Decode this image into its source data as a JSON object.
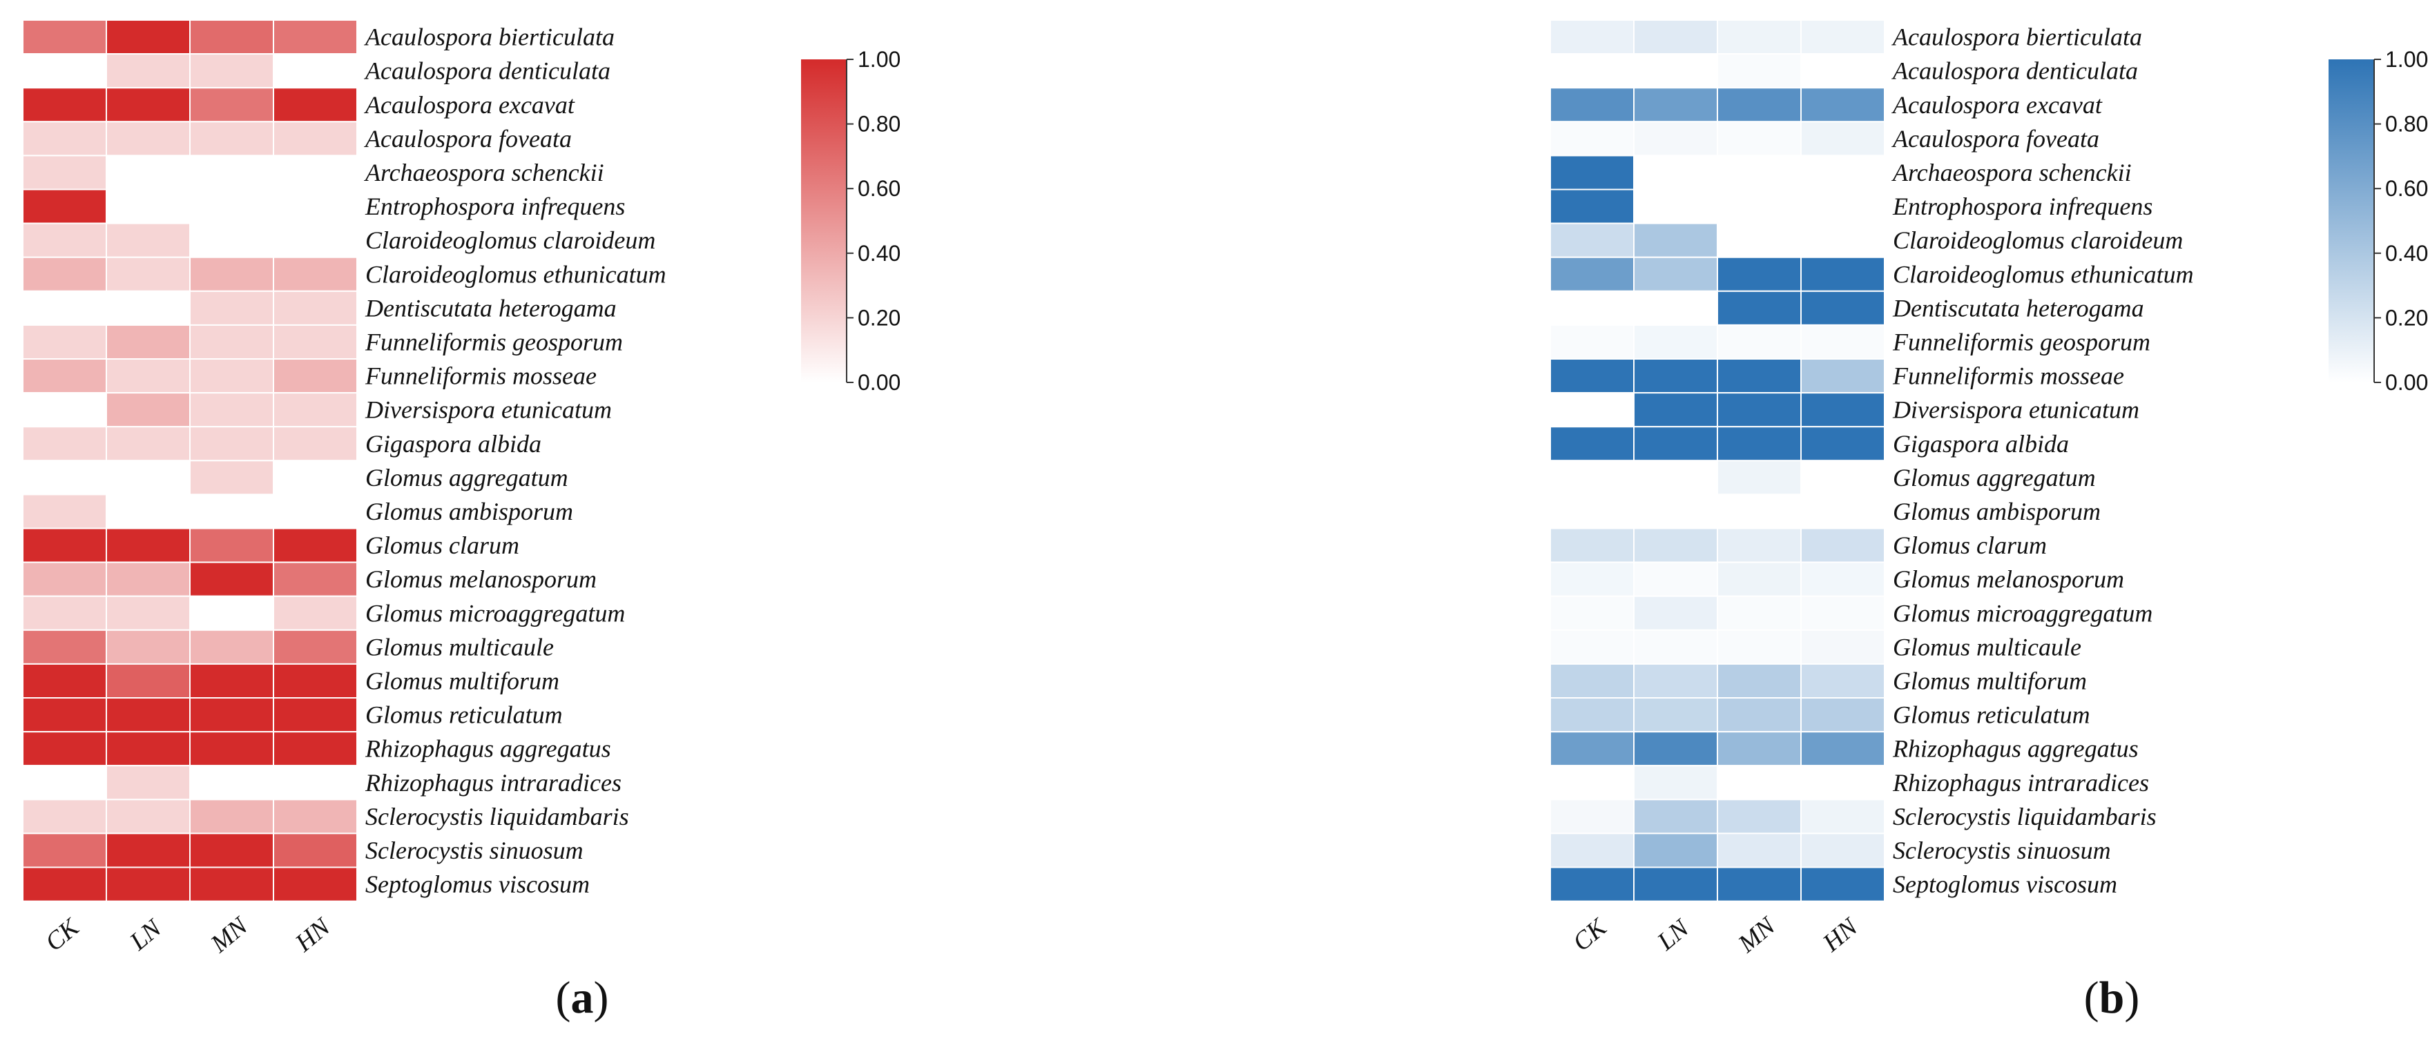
{
  "chart_data": [
    {
      "type": "heatmap",
      "panel_label": "a",
      "columns": [
        "CK",
        "LN",
        "MN",
        "HN"
      ],
      "rows": [
        "Acaulospora bierticulata",
        "Acaulospora denticulata",
        "Acaulospora excavat",
        "Acaulospora foveata",
        "Archaeospora schenckii",
        "Entrophospora infrequens",
        "Claroideoglomus claroideum",
        "Claroideoglomus ethunicatum",
        "Dentiscutata heterogama",
        "Funneliformis geosporum",
        "Funneliformis mosseae",
        "Diversispora etunicatum",
        "Gigaspora albida",
        "Glomus aggregatum",
        "Glomus ambisporum",
        "Glomus clarum",
        "Glomus melanosporum",
        "Glomus microaggregatum",
        "Glomus multicaule",
        "Glomus multiforum",
        "Glomus reticulatum",
        "Rhizophagus aggregatus",
        "Rhizophagus intraradices",
        "Sclerocystis liquidambaris",
        "Sclerocystis sinuosum",
        "Septoglomus viscosum"
      ],
      "values": [
        [
          0.65,
          1.0,
          0.7,
          0.65
        ],
        [
          0.0,
          0.2,
          0.2,
          0.0
        ],
        [
          1.0,
          1.0,
          0.65,
          1.0
        ],
        [
          0.2,
          0.2,
          0.2,
          0.2
        ],
        [
          0.2,
          0.0,
          0.0,
          0.0
        ],
        [
          1.0,
          0.0,
          0.0,
          0.0
        ],
        [
          0.2,
          0.2,
          0.0,
          0.0
        ],
        [
          0.35,
          0.2,
          0.35,
          0.35
        ],
        [
          0.0,
          0.0,
          0.2,
          0.2
        ],
        [
          0.2,
          0.35,
          0.2,
          0.2
        ],
        [
          0.35,
          0.2,
          0.2,
          0.35
        ],
        [
          0.0,
          0.35,
          0.2,
          0.2
        ],
        [
          0.2,
          0.2,
          0.2,
          0.2
        ],
        [
          0.0,
          0.0,
          0.2,
          0.0
        ],
        [
          0.2,
          0.0,
          0.0,
          0.0
        ],
        [
          1.0,
          1.0,
          0.7,
          1.0
        ],
        [
          0.35,
          0.35,
          1.0,
          0.65
        ],
        [
          0.2,
          0.2,
          0.0,
          0.2
        ],
        [
          0.65,
          0.35,
          0.35,
          0.65
        ],
        [
          1.0,
          0.75,
          1.0,
          1.0
        ],
        [
          1.0,
          1.0,
          1.0,
          1.0
        ],
        [
          1.0,
          1.0,
          1.0,
          1.0
        ],
        [
          0.0,
          0.2,
          0.0,
          0.0
        ],
        [
          0.2,
          0.2,
          0.35,
          0.35
        ],
        [
          0.7,
          1.0,
          1.0,
          0.75
        ],
        [
          1.0,
          1.0,
          1.0,
          1.0
        ]
      ],
      "color_low": "#ffffff",
      "color_high": "#d42b2b",
      "colorbar": {
        "range": [
          0,
          1
        ],
        "ticks": [
          "0.00",
          "0.20",
          "0.40",
          "0.60",
          "0.80",
          "1.00"
        ]
      }
    },
    {
      "type": "heatmap",
      "panel_label": "b",
      "columns": [
        "CK",
        "LN",
        "MN",
        "HN"
      ],
      "rows": [
        "Acaulospora bierticulata",
        "Acaulospora denticulata",
        "Acaulospora excavat",
        "Acaulospora foveata",
        "Archaeospora schenckii",
        "Entrophospora infrequens",
        "Claroideoglomus claroideum",
        "Claroideoglomus ethunicatum",
        "Dentiscutata heterogama",
        "Funneliformis geosporum",
        "Funneliformis mosseae",
        "Diversispora etunicatum",
        "Gigaspora albida",
        "Glomus aggregatum",
        "Glomus ambisporum",
        "Glomus clarum",
        "Glomus melanosporum",
        "Glomus microaggregatum",
        "Glomus multicaule",
        "Glomus multiforum",
        "Glomus reticulatum",
        "Rhizophagus aggregatus",
        "Rhizophagus intraradices",
        "Sclerocystis liquidambaris",
        "Sclerocystis sinuosum",
        "Septoglomus viscosum"
      ],
      "values": [
        [
          0.1,
          0.15,
          0.08,
          0.08
        ],
        [
          0.0,
          0.0,
          0.03,
          0.0
        ],
        [
          0.8,
          0.7,
          0.8,
          0.75
        ],
        [
          0.03,
          0.05,
          0.03,
          0.08
        ],
        [
          1.0,
          0.0,
          0.0,
          0.0
        ],
        [
          1.0,
          0.0,
          0.0,
          0.0
        ],
        [
          0.25,
          0.4,
          0.0,
          0.0
        ],
        [
          0.7,
          0.4,
          1.0,
          1.0
        ],
        [
          0.0,
          0.0,
          1.0,
          1.0
        ],
        [
          0.03,
          0.06,
          0.03,
          0.03
        ],
        [
          1.0,
          1.0,
          1.0,
          0.4
        ],
        [
          0.0,
          1.0,
          1.0,
          1.0
        ],
        [
          1.0,
          1.0,
          1.0,
          1.0
        ],
        [
          0.0,
          0.0,
          0.08,
          0.0
        ],
        [
          0.0,
          0.0,
          0.0,
          0.0
        ],
        [
          0.2,
          0.2,
          0.12,
          0.22
        ],
        [
          0.06,
          0.03,
          0.08,
          0.06
        ],
        [
          0.03,
          0.1,
          0.03,
          0.03
        ],
        [
          0.03,
          0.03,
          0.03,
          0.05
        ],
        [
          0.3,
          0.25,
          0.35,
          0.25
        ],
        [
          0.3,
          0.28,
          0.35,
          0.35
        ],
        [
          0.7,
          0.85,
          0.5,
          0.7
        ],
        [
          0.0,
          0.08,
          0.0,
          0.0
        ],
        [
          0.05,
          0.35,
          0.25,
          0.08
        ],
        [
          0.15,
          0.5,
          0.15,
          0.12
        ],
        [
          1.0,
          1.0,
          1.0,
          1.0
        ]
      ],
      "color_low": "#ffffff",
      "color_high": "#2e74b5",
      "colorbar": {
        "range": [
          0,
          1
        ],
        "ticks": [
          "0.00",
          "0.20",
          "0.40",
          "0.60",
          "0.80",
          "1.00"
        ]
      }
    }
  ]
}
